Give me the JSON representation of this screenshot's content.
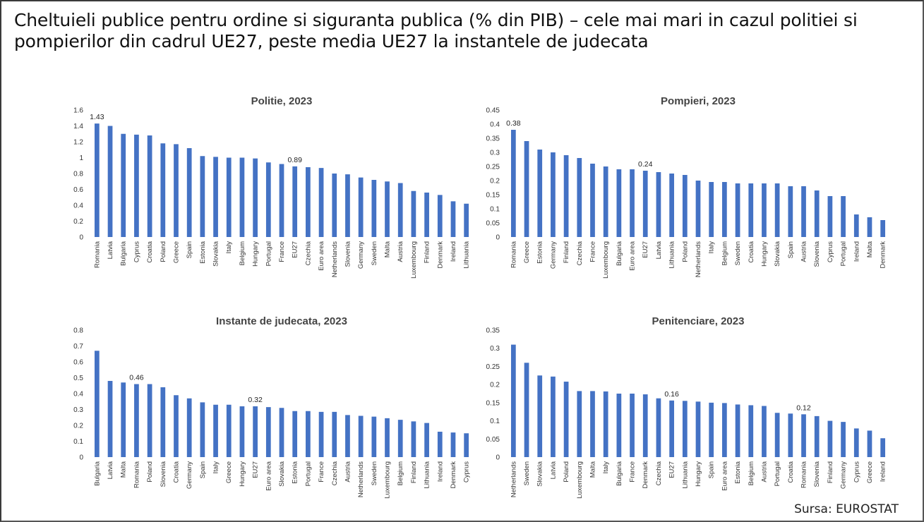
{
  "page": {
    "title": "Cheltuieli publice pentru ordine si siguranta publica (% din PIB) – cele mai mari in cazul politiei si pompierilor din cadrul UE27, peste media UE27 la instantele de judecata",
    "source": "Sursa: EUROSTAT",
    "bar_color": "#4472c4"
  },
  "chart_data": [
    {
      "type": "bar",
      "title": "Politie, 2023",
      "categories": [
        "Romania",
        "Latvia",
        "Bulgaria",
        "Cyprus",
        "Croatia",
        "Poland",
        "Greece",
        "Spain",
        "Estonia",
        "Slovakia",
        "Italy",
        "Belgium",
        "Hungary",
        "Portugal",
        "France",
        "EU27",
        "Czechia",
        "Euro area",
        "Netherlands",
        "Slovenia",
        "Germany",
        "Sweden",
        "Malta",
        "Austria",
        "Luxembourg",
        "Finland",
        "Denmark",
        "Ireland",
        "Lithuania"
      ],
      "values": [
        1.43,
        1.4,
        1.3,
        1.29,
        1.28,
        1.18,
        1.17,
        1.12,
        1.02,
        1.01,
        1.0,
        1.0,
        0.99,
        0.94,
        0.92,
        0.89,
        0.88,
        0.87,
        0.8,
        0.79,
        0.75,
        0.72,
        0.7,
        0.68,
        0.58,
        0.56,
        0.53,
        0.45,
        0.42
      ],
      "ylim": [
        0,
        1.6
      ],
      "yticks": [
        "0",
        "0.2",
        "0.4",
        "0.6",
        "0.8",
        "1",
        "1.2",
        "1.4",
        "1.6"
      ],
      "labels": [
        {
          "index": 0,
          "text": "1.43"
        },
        {
          "index": 15,
          "text": "0.89"
        }
      ]
    },
    {
      "type": "bar",
      "title": "Pompieri, 2023",
      "categories": [
        "Romania",
        "Greece",
        "Estonia",
        "Germany",
        "Finland",
        "Czechia",
        "France",
        "Luxembourg",
        "Bulgaria",
        "Euro area",
        "EU27",
        "Latvia",
        "Lithuania",
        "Poland",
        "Netherlands",
        "Italy",
        "Belgium",
        "Sweden",
        "Croatia",
        "Hungary",
        "Slovakia",
        "Spain",
        "Austria",
        "Slovenia",
        "Cyprus",
        "Portugal",
        "Ireland",
        "Malta",
        "Denmark"
      ],
      "values": [
        0.38,
        0.34,
        0.31,
        0.3,
        0.29,
        0.28,
        0.26,
        0.25,
        0.24,
        0.24,
        0.235,
        0.23,
        0.225,
        0.22,
        0.2,
        0.195,
        0.195,
        0.19,
        0.19,
        0.19,
        0.19,
        0.18,
        0.18,
        0.165,
        0.145,
        0.145,
        0.08,
        0.07,
        0.06
      ],
      "ylim": [
        0,
        0.45
      ],
      "yticks": [
        "0",
        "0.05",
        "0.1",
        "0.15",
        "0.2",
        "0.25",
        "0.3",
        "0.35",
        "0.4",
        "0.45"
      ],
      "labels": [
        {
          "index": 0,
          "text": "0.38"
        },
        {
          "index": 10,
          "text": "0.24"
        }
      ]
    },
    {
      "type": "bar",
      "title": "Instante de judecata, 2023",
      "categories": [
        "Bulgaria",
        "Latvia",
        "Malta",
        "Romania",
        "Poland",
        "Slovenia",
        "Croatia",
        "Germany",
        "Spain",
        "Italy",
        "Greece",
        "Hungary",
        "EU27",
        "Euro area",
        "Slovakia",
        "Estonia",
        "Portugal",
        "France",
        "Czechia",
        "Austria",
        "Netherlands",
        "Sweden",
        "Luxembourg",
        "Belgium",
        "Finland",
        "Lithuania",
        "Ireland",
        "Denmark",
        "Cyprus"
      ],
      "values": [
        0.67,
        0.48,
        0.47,
        0.46,
        0.46,
        0.44,
        0.39,
        0.37,
        0.345,
        0.33,
        0.33,
        0.32,
        0.32,
        0.315,
        0.31,
        0.29,
        0.29,
        0.285,
        0.285,
        0.265,
        0.26,
        0.255,
        0.245,
        0.235,
        0.225,
        0.215,
        0.16,
        0.155,
        0.15
      ],
      "ylim": [
        0,
        0.8
      ],
      "yticks": [
        "0",
        "0.1",
        "0.2",
        "0.3",
        "0.4",
        "0.5",
        "0.6",
        "0.7",
        "0.8"
      ],
      "labels": [
        {
          "index": 3,
          "text": "0.46"
        },
        {
          "index": 12,
          "text": "0.32"
        }
      ]
    },
    {
      "type": "bar",
      "title": "Penitenciare, 2023",
      "categories": [
        "Netherlands",
        "Sweden",
        "Slovakia",
        "Latvia",
        "Poland",
        "Luxembourg",
        "Malta",
        "Italy",
        "Bulgaria",
        "France",
        "Denmark",
        "Czechia",
        "EU27",
        "Lithuania",
        "Hungary",
        "Spain",
        "Euro area",
        "Estonia",
        "Belgium",
        "Austria",
        "Portugal",
        "Croatia",
        "Romania",
        "Slovenia",
        "Finland",
        "Germany",
        "Cyprus",
        "Greece",
        "Ireland"
      ],
      "values": [
        0.31,
        0.26,
        0.225,
        0.222,
        0.208,
        0.182,
        0.182,
        0.181,
        0.175,
        0.175,
        0.173,
        0.162,
        0.156,
        0.155,
        0.153,
        0.15,
        0.149,
        0.145,
        0.143,
        0.141,
        0.122,
        0.12,
        0.118,
        0.113,
        0.1,
        0.097,
        0.079,
        0.073,
        0.052
      ],
      "ylim": [
        0,
        0.35
      ],
      "yticks": [
        "0",
        "0.05",
        "0.1",
        "0.15",
        "0.2",
        "0.25",
        "0.3",
        "0.35"
      ],
      "labels": [
        {
          "index": 12,
          "text": "0.16"
        },
        {
          "index": 22,
          "text": "0.12"
        }
      ]
    }
  ]
}
